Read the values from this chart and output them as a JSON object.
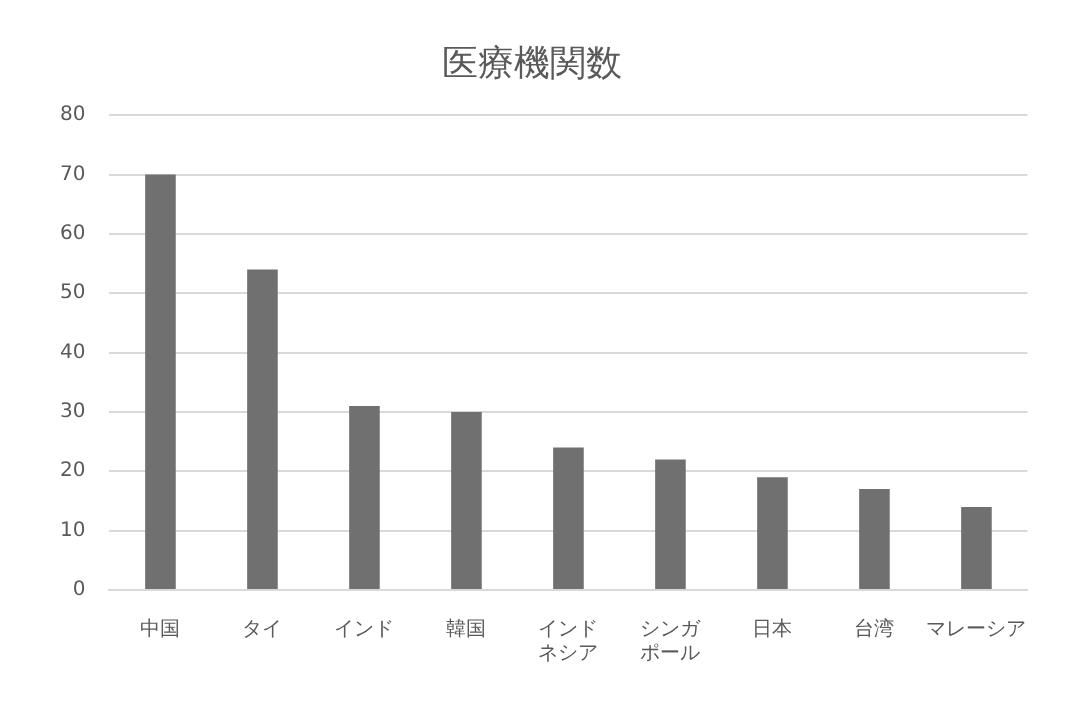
{
  "chart_data": {
    "type": "bar",
    "title": "医療機関数",
    "categories": [
      "中国",
      "タイ",
      "インド",
      "韓国",
      "インドネシア",
      "シンガポール",
      "日本",
      "台湾",
      "マレーシア"
    ],
    "values": [
      70,
      54,
      31,
      30,
      24,
      22,
      19,
      17,
      14
    ],
    "color": "#707070",
    "ylim": [
      0,
      80
    ],
    "yticks": [
      0,
      10,
      20,
      30,
      40,
      50,
      60,
      70,
      80
    ],
    "grid": "y",
    "legend": false
  }
}
